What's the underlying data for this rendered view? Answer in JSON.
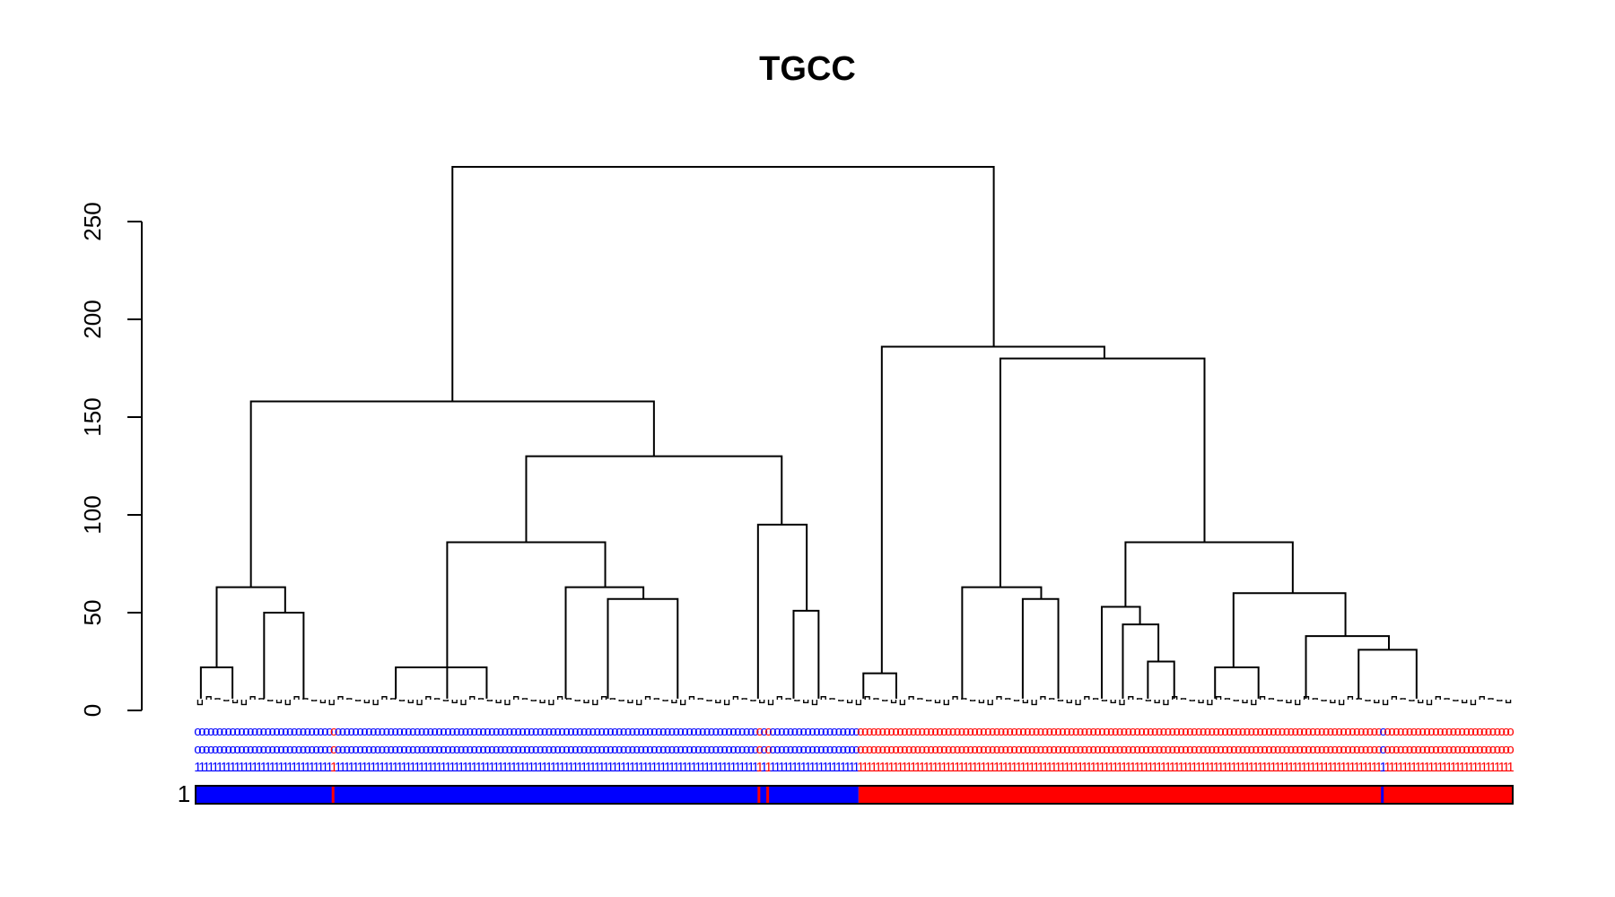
{
  "chart_data": {
    "type": "dendrogram",
    "title": "TGCC",
    "xlabel": "",
    "ylabel": "",
    "ylim": [
      0,
      280
    ],
    "y_ticks": [
      0,
      50,
      100,
      150,
      200,
      250
    ],
    "color_bar_label": "1",
    "colors": {
      "cluster_1": "#0000ff",
      "cluster_2": "#ff0000",
      "lines": "#000000"
    },
    "leaf_label_rows": [
      {
        "text": "o"
      },
      {
        "text": "o"
      },
      {
        "text": "1"
      }
    ],
    "leaf_count": 300,
    "leaf_groups": [
      {
        "cluster": 1,
        "from_leaf": 0,
        "to_leaf": 151
      },
      {
        "cluster": 2,
        "from_leaf": 151,
        "to_leaf": 300
      }
    ],
    "color_bar_exceptions": [
      {
        "leaf": 31,
        "cluster": 2
      },
      {
        "leaf": 128,
        "cluster": 2
      },
      {
        "leaf": 130,
        "cluster": 2
      },
      {
        "leaf": 270,
        "cluster": 1
      }
    ],
    "merges": [
      {
        "name": "root",
        "height": 278,
        "left_x": 0.195,
        "right_x": 0.606
      },
      {
        "name": "left-main",
        "height": 158,
        "left_x": 0.042,
        "right_x": 0.348
      },
      {
        "name": "right-main",
        "height": 186,
        "left_x": 0.521,
        "right_x": 0.69
      },
      {
        "name": "right-sub",
        "height": 180,
        "left_x": 0.611,
        "right_x": 0.766
      },
      {
        "name": "left-mid",
        "height": 130,
        "left_x": 0.251,
        "right_x": 0.445
      },
      {
        "name": "left-inner",
        "height": 86,
        "left_x": 0.191,
        "right_x": 0.311
      },
      {
        "name": "mid-right",
        "height": 95,
        "left_x": 0.427,
        "right_x": 0.464
      },
      {
        "name": "right-inner",
        "height": 86,
        "left_x": 0.706,
        "right_x": 0.833
      },
      {
        "name": "rc-left",
        "height": 63,
        "left_x": 0.582,
        "right_x": 0.642
      },
      {
        "name": "rc-right",
        "height": 60,
        "left_x": 0.788,
        "right_x": 0.873
      },
      {
        "name": "ll-1",
        "height": 63,
        "left_x": 0.016,
        "right_x": 0.068
      },
      {
        "name": "ll-2",
        "height": 50,
        "left_x": 0.052,
        "right_x": 0.082
      },
      {
        "name": "li-1",
        "height": 63,
        "left_x": 0.281,
        "right_x": 0.34
      },
      {
        "name": "li-2",
        "height": 57,
        "left_x": 0.313,
        "right_x": 0.366
      },
      {
        "name": "mr-1",
        "height": 51,
        "left_x": 0.454,
        "right_x": 0.473
      },
      {
        "name": "rc-l-2",
        "height": 57,
        "left_x": 0.628,
        "right_x": 0.655
      },
      {
        "name": "ri-1",
        "height": 53,
        "left_x": 0.688,
        "right_x": 0.717
      },
      {
        "name": "ri-2",
        "height": 44,
        "left_x": 0.704,
        "right_x": 0.731
      },
      {
        "name": "rr-1",
        "height": 38,
        "left_x": 0.843,
        "right_x": 0.906
      },
      {
        "name": "rr-2",
        "height": 31,
        "left_x": 0.883,
        "right_x": 0.927
      },
      {
        "name": "small-1",
        "height": 22,
        "left_x": 0.004,
        "right_x": 0.028
      },
      {
        "name": "small-2",
        "height": 22,
        "left_x": 0.152,
        "right_x": 0.221
      },
      {
        "name": "small-3",
        "height": 22,
        "left_x": 0.774,
        "right_x": 0.807
      },
      {
        "name": "small-4",
        "height": 19,
        "left_x": 0.507,
        "right_x": 0.532
      },
      {
        "name": "small-5",
        "height": 25,
        "left_x": 0.723,
        "right_x": 0.743
      }
    ]
  }
}
